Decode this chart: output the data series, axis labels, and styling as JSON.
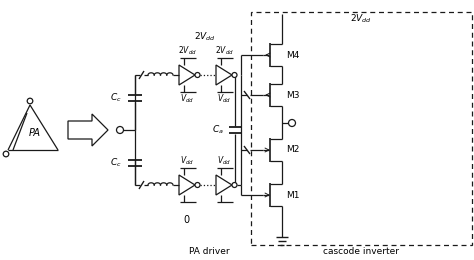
{
  "bg_color": "#ffffff",
  "lc": "#1a1a1a",
  "fig_w": 4.74,
  "fig_h": 2.6,
  "dpi": 100,
  "pa_label": "PA",
  "label_pa_driver": "PA driver",
  "label_cascode": "cascode inverter",
  "label_M1": "M1",
  "label_M2": "M2",
  "label_M3": "M3",
  "label_M4": "M4"
}
